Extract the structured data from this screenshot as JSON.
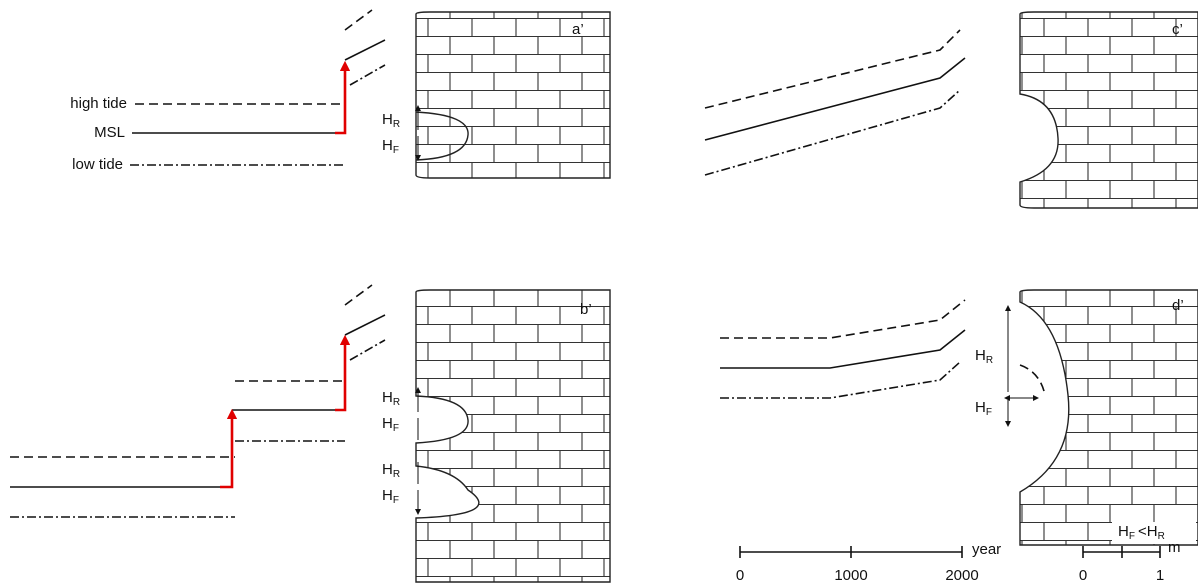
{
  "panels": [
    {
      "label": "a’"
    },
    {
      "label": "b’"
    },
    {
      "label": "c’"
    },
    {
      "label": "d’"
    }
  ],
  "sea_levels": {
    "high": "high tide",
    "mean": "MSL",
    "low": "low tide"
  },
  "notch_symbols": {
    "height": "H",
    "rise": "R",
    "fall": "F",
    "comparison": "<"
  },
  "time_scale": {
    "ticks": [
      0,
      1000,
      2000
    ],
    "unit": "year"
  },
  "length_scale": {
    "ticks": [
      0,
      1
    ],
    "unit": "m"
  }
}
